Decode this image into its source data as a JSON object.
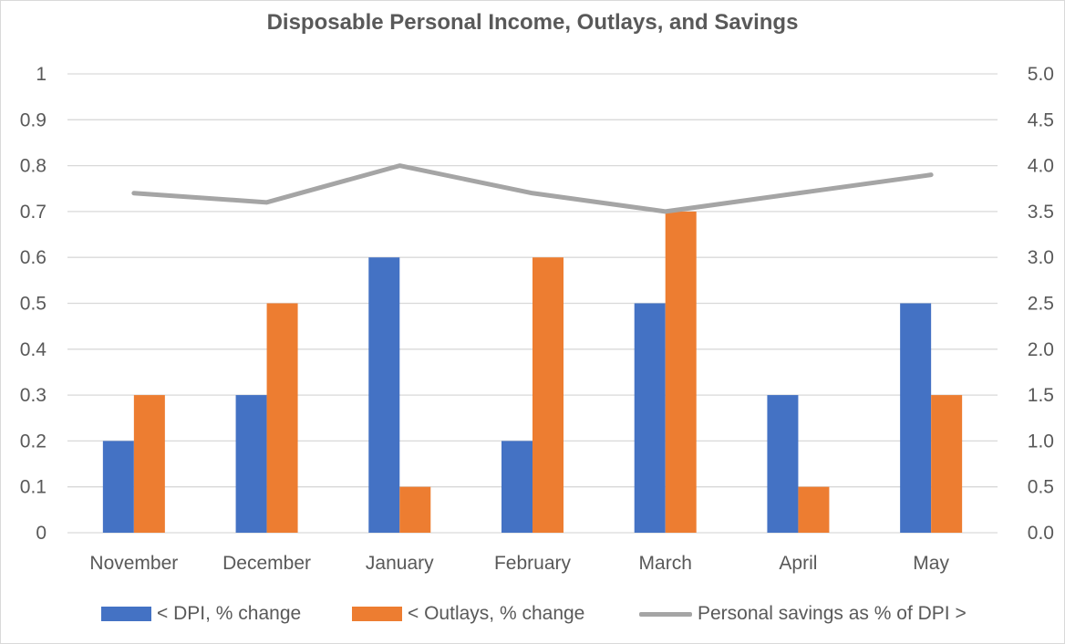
{
  "chart_data": {
    "type": "bar",
    "title": "Disposable Personal Income, Outlays, and Savings",
    "categories": [
      "November",
      "December",
      "January",
      "February",
      "March",
      "April",
      "May"
    ],
    "series": [
      {
        "name": "< DPI, % change",
        "kind": "bar",
        "axis": "left",
        "color": "#4472c4",
        "values": [
          0.2,
          0.3,
          0.6,
          0.2,
          0.5,
          0.3,
          0.5
        ]
      },
      {
        "name": "< Outlays, % change",
        "kind": "bar",
        "axis": "left",
        "color": "#ed7d31",
        "values": [
          0.3,
          0.5,
          0.1,
          0.6,
          0.7,
          0.1,
          0.3
        ]
      },
      {
        "name": "Personal savings as % of DPI >",
        "kind": "line",
        "axis": "right",
        "color": "#a5a5a5",
        "values": [
          3.7,
          3.6,
          4.0,
          3.7,
          3.5,
          3.7,
          3.9
        ]
      }
    ],
    "y_left": {
      "min": 0,
      "max": 1,
      "ticks": [
        "0",
        "0.1",
        "0.2",
        "0.3",
        "0.4",
        "0.5",
        "0.6",
        "0.7",
        "0.8",
        "0.9",
        "1"
      ]
    },
    "y_right": {
      "min": 0,
      "max": 5,
      "ticks": [
        "0.0",
        "0.5",
        "1.0",
        "1.5",
        "2.0",
        "2.5",
        "3.0",
        "3.5",
        "4.0",
        "4.5",
        "5.0"
      ]
    },
    "grid": true,
    "legend_position": "bottom"
  }
}
